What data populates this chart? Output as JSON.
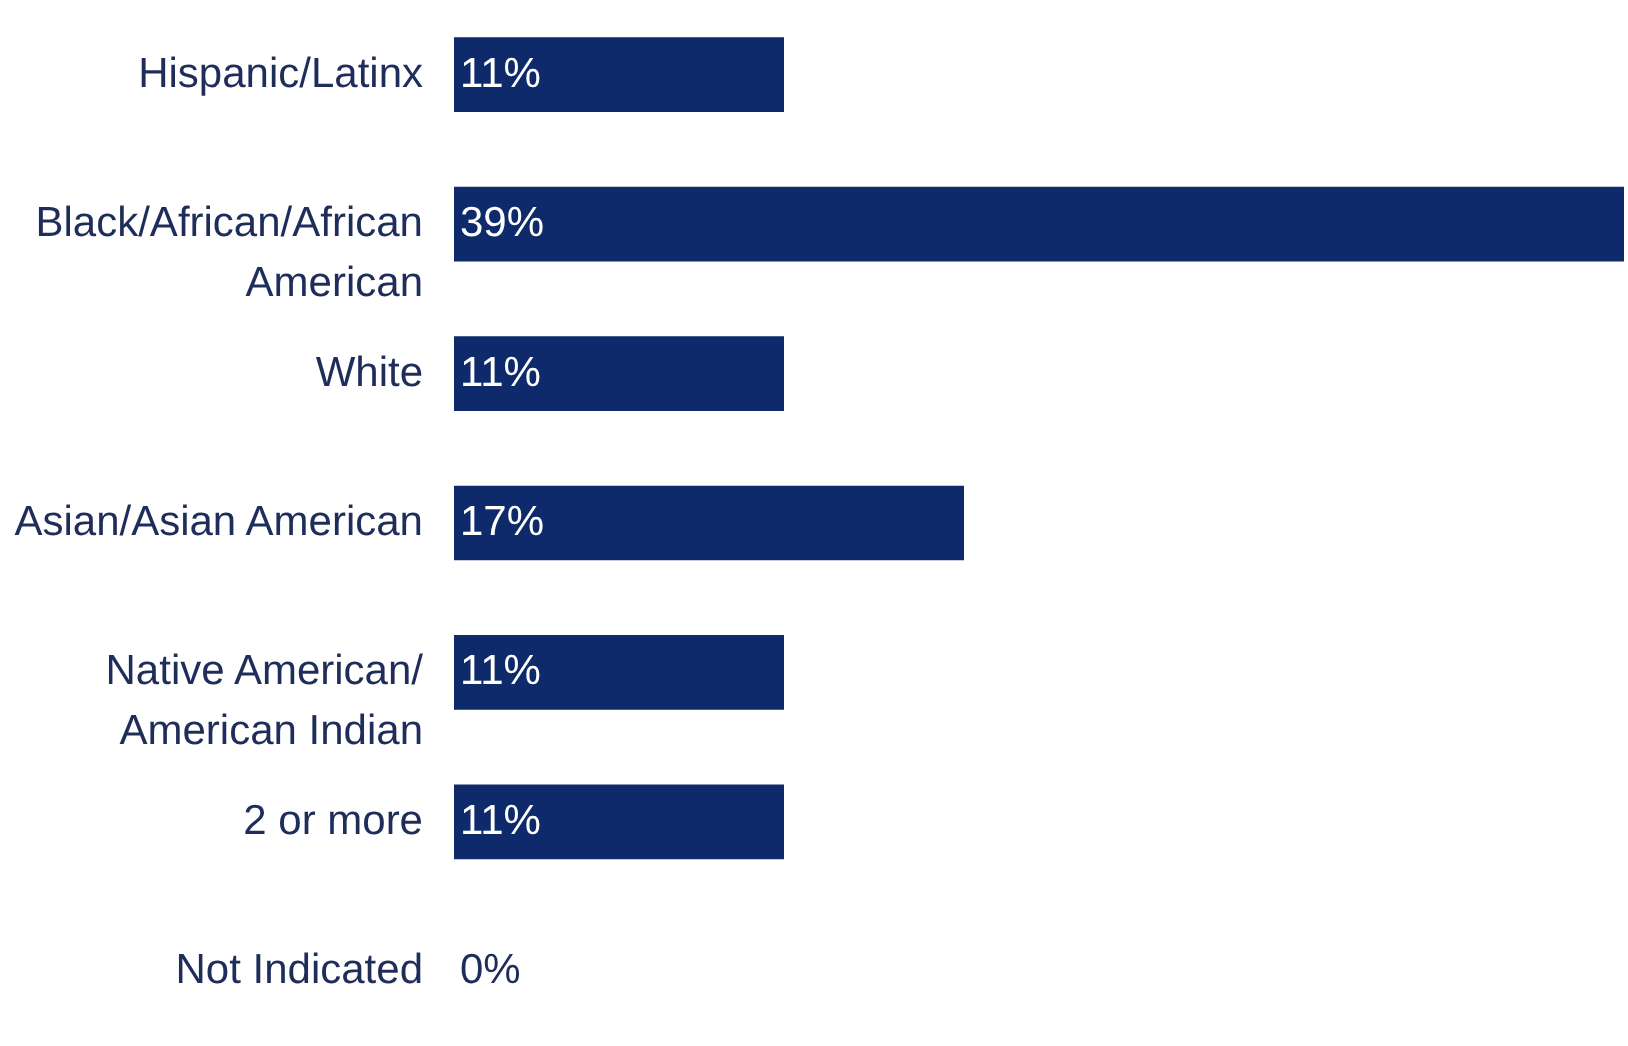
{
  "chart_data": {
    "type": "bar",
    "orientation": "horizontal",
    "grid": false,
    "categories": [
      "Hispanic/Latinx",
      "Black/African/African American",
      "White",
      "Asian/Asian American",
      "Native American/ American Indian",
      "2 or more",
      "Not Indicated"
    ],
    "values": [
      11,
      39,
      11,
      17,
      11,
      11,
      0
    ],
    "value_labels": [
      "11%",
      "39%",
      "11%",
      "17%",
      "11%",
      "11%",
      "0%"
    ],
    "color": "#0e2a6b"
  }
}
